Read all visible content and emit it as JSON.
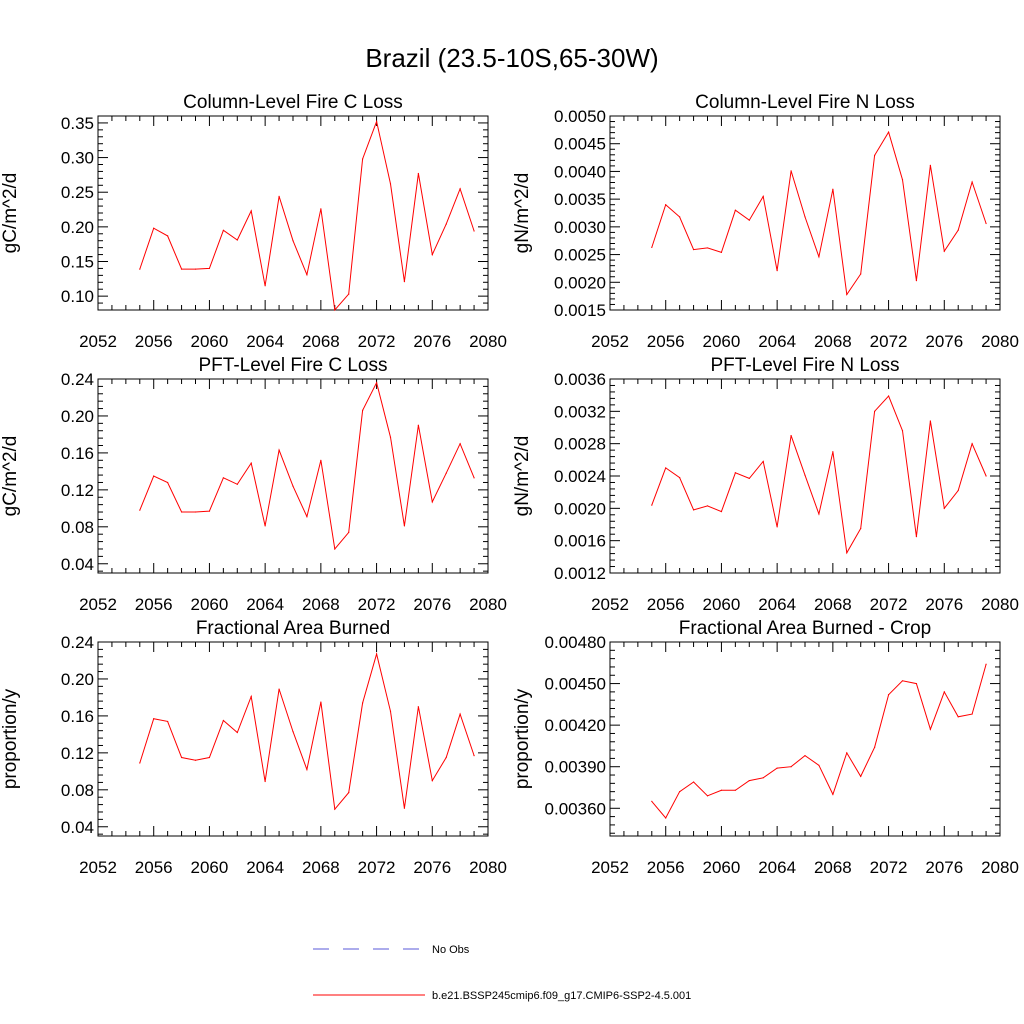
{
  "page_title": "Brazil (23.5-10S,65-30W)",
  "colors": {
    "model": "#ff0000",
    "obs": "#5a5ad8",
    "axis": "#000000"
  },
  "legend": {
    "items": [
      {
        "label": "No Obs",
        "style": "dashed",
        "color": "#5a5ad8"
      },
      {
        "label": "b.e21.BSSP245cmip6.f09_g17.CMIP6-SSP2-4.5.001",
        "style": "solid",
        "color": "#ff0000"
      }
    ]
  },
  "chart_data": [
    {
      "type": "line",
      "title": "Column-Level Fire C Loss",
      "ylabel": "gC/m^2/d",
      "xlim": [
        2052,
        2080
      ],
      "ylim": [
        0.08,
        0.36
      ],
      "xticks": [
        2052,
        2056,
        2060,
        2064,
        2068,
        2072,
        2076,
        2080
      ],
      "xtick_labels": [
        "2052",
        "2056",
        "2060",
        "2064",
        "2068",
        "2072",
        "2076",
        "2080"
      ],
      "yticks": [
        0.1,
        0.15,
        0.2,
        0.25,
        0.3,
        0.35
      ],
      "ytick_labels": [
        "0.10",
        "0.15",
        "0.20",
        "0.25",
        "0.30",
        "0.35"
      ],
      "x": [
        2055,
        2056,
        2057,
        2058,
        2059,
        2060,
        2061,
        2062,
        2063,
        2064,
        2065,
        2066,
        2067,
        2068,
        2069,
        2070,
        2071,
        2072,
        2073,
        2074,
        2075,
        2076,
        2077,
        2078,
        2079
      ],
      "series": [
        {
          "values": [
            0.139,
            0.198,
            0.187,
            0.139,
            0.139,
            0.14,
            0.195,
            0.181,
            0.223,
            0.115,
            0.244,
            0.18,
            0.131,
            0.226,
            0.08,
            0.103,
            0.298,
            0.352,
            0.262,
            0.121,
            0.277,
            0.16,
            0.204,
            0.255,
            0.194
          ]
        }
      ]
    },
    {
      "type": "line",
      "title": "Column-Level Fire N Loss",
      "ylabel": "gN/m^2/d",
      "xlim": [
        2052,
        2080
      ],
      "ylim": [
        0.0015,
        0.005
      ],
      "xticks": [
        2052,
        2056,
        2060,
        2064,
        2068,
        2072,
        2076,
        2080
      ],
      "xtick_labels": [
        "2052",
        "2056",
        "2060",
        "2064",
        "2068",
        "2072",
        "2076",
        "2080"
      ],
      "yticks": [
        0.0015,
        0.002,
        0.0025,
        0.003,
        0.0035,
        0.004,
        0.0045,
        0.005
      ],
      "ytick_labels": [
        "0.0015",
        "0.0020",
        "0.0025",
        "0.0030",
        "0.0035",
        "0.0040",
        "0.0045",
        "0.0050"
      ],
      "x": [
        2055,
        2056,
        2057,
        2058,
        2059,
        2060,
        2061,
        2062,
        2063,
        2064,
        2065,
        2066,
        2067,
        2068,
        2069,
        2070,
        2071,
        2072,
        2073,
        2074,
        2075,
        2076,
        2077,
        2078,
        2079
      ],
      "series": [
        {
          "values": [
            0.00263,
            0.0034,
            0.00318,
            0.00259,
            0.00262,
            0.00254,
            0.0033,
            0.00312,
            0.00355,
            0.00221,
            0.00401,
            0.00318,
            0.00246,
            0.00368,
            0.00178,
            0.00215,
            0.00429,
            0.00471,
            0.00385,
            0.00203,
            0.00411,
            0.00256,
            0.00294,
            0.00381,
            0.00306
          ]
        }
      ]
    },
    {
      "type": "line",
      "title": "PFT-Level Fire C Loss",
      "ylabel": "gC/m^2/d",
      "xlim": [
        2052,
        2080
      ],
      "ylim": [
        0.03,
        0.24
      ],
      "xticks": [
        2052,
        2056,
        2060,
        2064,
        2068,
        2072,
        2076,
        2080
      ],
      "xtick_labels": [
        "2052",
        "2056",
        "2060",
        "2064",
        "2068",
        "2072",
        "2076",
        "2080"
      ],
      "yticks": [
        0.04,
        0.08,
        0.12,
        0.16,
        0.2,
        0.24
      ],
      "ytick_labels": [
        "0.04",
        "0.08",
        "0.12",
        "0.16",
        "0.20",
        "0.24"
      ],
      "x": [
        2055,
        2056,
        2057,
        2058,
        2059,
        2060,
        2061,
        2062,
        2063,
        2064,
        2065,
        2066,
        2067,
        2068,
        2069,
        2070,
        2071,
        2072,
        2073,
        2074,
        2075,
        2076,
        2077,
        2078,
        2079
      ],
      "series": [
        {
          "values": [
            0.098,
            0.135,
            0.128,
            0.096,
            0.096,
            0.097,
            0.133,
            0.126,
            0.149,
            0.081,
            0.163,
            0.124,
            0.091,
            0.152,
            0.056,
            0.074,
            0.206,
            0.236,
            0.177,
            0.081,
            0.19,
            0.107,
            0.138,
            0.17,
            0.133
          ]
        }
      ]
    },
    {
      "type": "line",
      "title": "PFT-Level Fire N Loss",
      "ylabel": "gN/m^2/d",
      "xlim": [
        2052,
        2080
      ],
      "ylim": [
        0.0012,
        0.0036
      ],
      "xticks": [
        2052,
        2056,
        2060,
        2064,
        2068,
        2072,
        2076,
        2080
      ],
      "xtick_labels": [
        "2052",
        "2056",
        "2060",
        "2064",
        "2068",
        "2072",
        "2076",
        "2080"
      ],
      "yticks": [
        0.0012,
        0.0016,
        0.002,
        0.0024,
        0.0028,
        0.0032,
        0.0036
      ],
      "ytick_labels": [
        "0.0012",
        "0.0016",
        "0.0020",
        "0.0024",
        "0.0028",
        "0.0032",
        "0.0036"
      ],
      "x": [
        2055,
        2056,
        2057,
        2058,
        2059,
        2060,
        2061,
        2062,
        2063,
        2064,
        2065,
        2066,
        2067,
        2068,
        2069,
        2070,
        2071,
        2072,
        2073,
        2074,
        2075,
        2076,
        2077,
        2078,
        2079
      ],
      "series": [
        {
          "values": [
            0.00204,
            0.0025,
            0.00238,
            0.00198,
            0.00203,
            0.00196,
            0.00244,
            0.00237,
            0.00258,
            0.00177,
            0.0029,
            0.00241,
            0.00193,
            0.0027,
            0.00145,
            0.00175,
            0.0032,
            0.00339,
            0.00296,
            0.00165,
            0.00308,
            0.002,
            0.00222,
            0.0028,
            0.0024
          ]
        }
      ]
    },
    {
      "type": "line",
      "title": "Fractional Area Burned",
      "ylabel": "proportion/y",
      "xlim": [
        2052,
        2080
      ],
      "ylim": [
        0.03,
        0.24
      ],
      "xticks": [
        2052,
        2056,
        2060,
        2064,
        2068,
        2072,
        2076,
        2080
      ],
      "xtick_labels": [
        "2052",
        "2056",
        "2060",
        "2064",
        "2068",
        "2072",
        "2076",
        "2080"
      ],
      "yticks": [
        0.04,
        0.08,
        0.12,
        0.16,
        0.2,
        0.24
      ],
      "ytick_labels": [
        "0.04",
        "0.08",
        "0.12",
        "0.16",
        "0.20",
        "0.24"
      ],
      "x": [
        2055,
        2056,
        2057,
        2058,
        2059,
        2060,
        2061,
        2062,
        2063,
        2064,
        2065,
        2066,
        2067,
        2068,
        2069,
        2070,
        2071,
        2072,
        2073,
        2074,
        2075,
        2076,
        2077,
        2078,
        2079
      ],
      "series": [
        {
          "values": [
            0.109,
            0.157,
            0.154,
            0.115,
            0.112,
            0.115,
            0.155,
            0.142,
            0.181,
            0.089,
            0.189,
            0.143,
            0.102,
            0.175,
            0.059,
            0.077,
            0.174,
            0.227,
            0.165,
            0.06,
            0.17,
            0.09,
            0.115,
            0.162,
            0.117
          ]
        }
      ]
    },
    {
      "type": "line",
      "title": "Fractional Area Burned - Crop",
      "ylabel": "proportion/y",
      "xlim": [
        2052,
        2080
      ],
      "ylim": [
        0.0034,
        0.0048
      ],
      "xticks": [
        2052,
        2056,
        2060,
        2064,
        2068,
        2072,
        2076,
        2080
      ],
      "xtick_labels": [
        "2052",
        "2056",
        "2060",
        "2064",
        "2068",
        "2072",
        "2076",
        "2080"
      ],
      "yticks": [
        0.0036,
        0.0039,
        0.0042,
        0.0045,
        0.0048
      ],
      "ytick_labels": [
        "0.00360",
        "0.00390",
        "0.00420",
        "0.00450",
        "0.00480"
      ],
      "x": [
        2055,
        2056,
        2057,
        2058,
        2059,
        2060,
        2061,
        2062,
        2063,
        2064,
        2065,
        2066,
        2067,
        2068,
        2069,
        2070,
        2071,
        2072,
        2073,
        2074,
        2075,
        2076,
        2077,
        2078,
        2079
      ],
      "series": [
        {
          "values": [
            0.00365,
            0.00353,
            0.00372,
            0.00379,
            0.00369,
            0.00373,
            0.00373,
            0.0038,
            0.00382,
            0.00389,
            0.0039,
            0.00398,
            0.00391,
            0.0037,
            0.004,
            0.00383,
            0.00404,
            0.00442,
            0.00452,
            0.0045,
            0.00417,
            0.00444,
            0.00426,
            0.00428,
            0.00464
          ]
        }
      ]
    }
  ]
}
